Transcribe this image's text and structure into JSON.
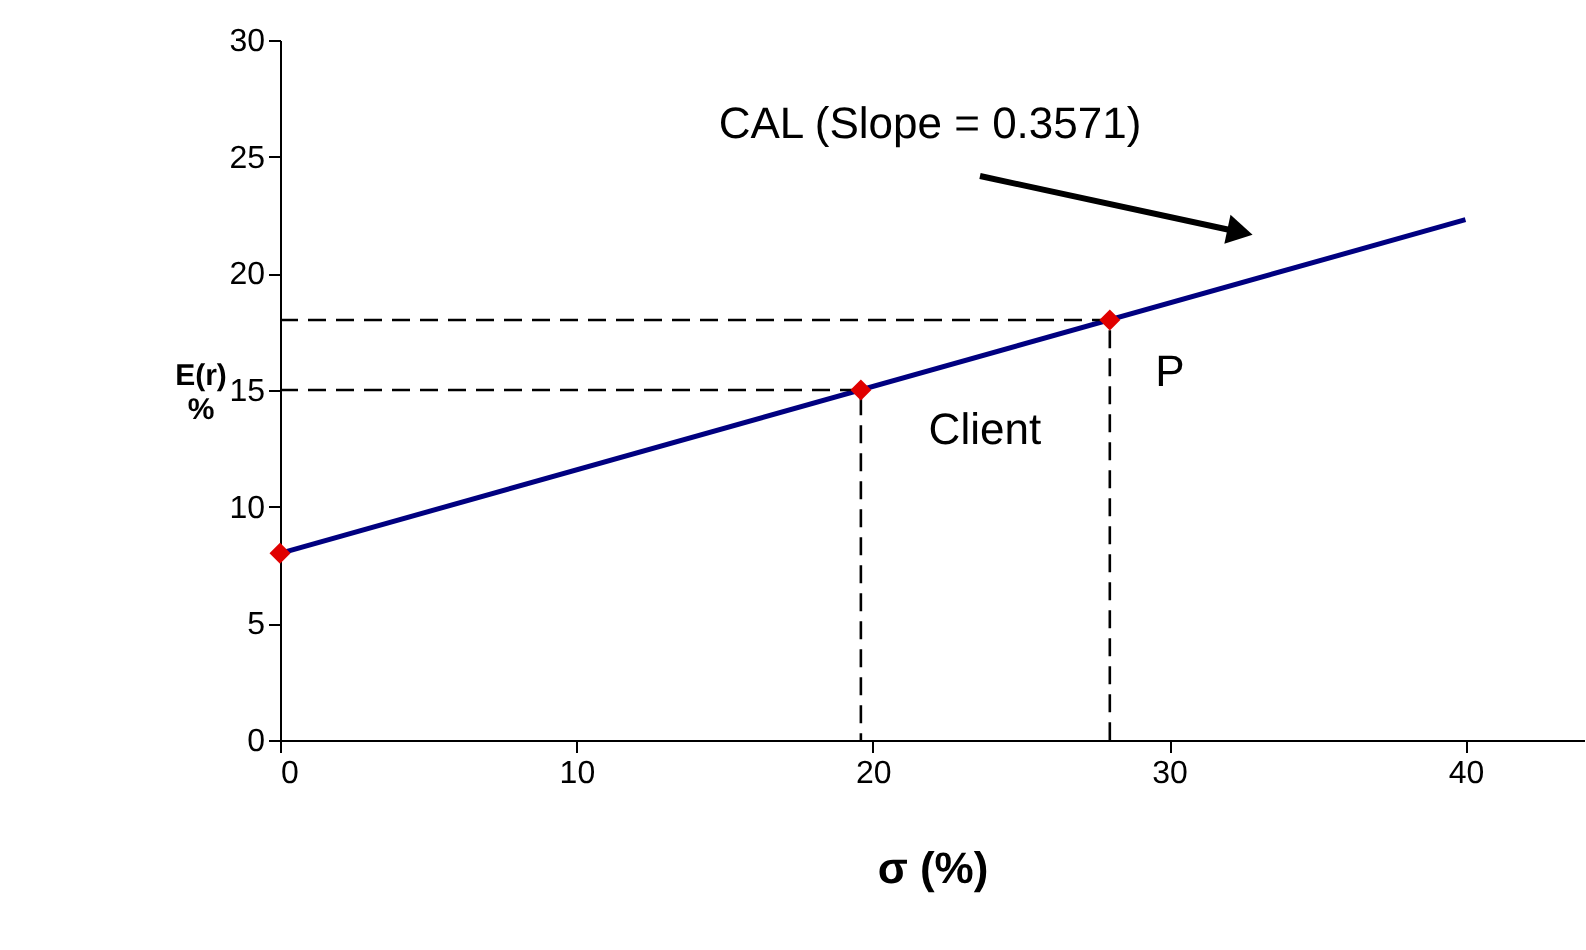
{
  "chart_data": {
    "type": "line",
    "xlabel": "σ (%)",
    "ylabel": "E(r)\n%",
    "xlim": [
      0,
      44
    ],
    "xticks": [
      0,
      10,
      20,
      30,
      40
    ],
    "ylim": [
      0,
      30
    ],
    "yticks": [
      0,
      5,
      10,
      15,
      20,
      25,
      30
    ],
    "grid": false,
    "series": [
      {
        "color": "#000080",
        "x": [
          0,
          40
        ],
        "values": [
          8,
          22.3
        ],
        "line_style": "solid",
        "marker": "none"
      },
      {
        "color": "#000000",
        "x": [
          0,
          19.6,
          19.6
        ],
        "values": [
          15,
          15,
          0
        ],
        "line_style": "dashed",
        "marker": "none"
      },
      {
        "color": "#000000",
        "x": [
          0,
          28,
          28
        ],
        "values": [
          18,
          18,
          0
        ],
        "line_style": "dashed",
        "marker": "none"
      },
      {
        "type": "scatter",
        "color": "#e00000",
        "x": [
          0,
          19.6,
          28
        ],
        "values": [
          8,
          15,
          18
        ],
        "marker": "diamond"
      }
    ],
    "annotations": [
      "CAL (Slope = 0.3571)",
      {
        "text": "Client",
        "x": 19.6,
        "y": 15
      },
      {
        "text": "P",
        "x": 28,
        "y": 18
      }
    ]
  }
}
